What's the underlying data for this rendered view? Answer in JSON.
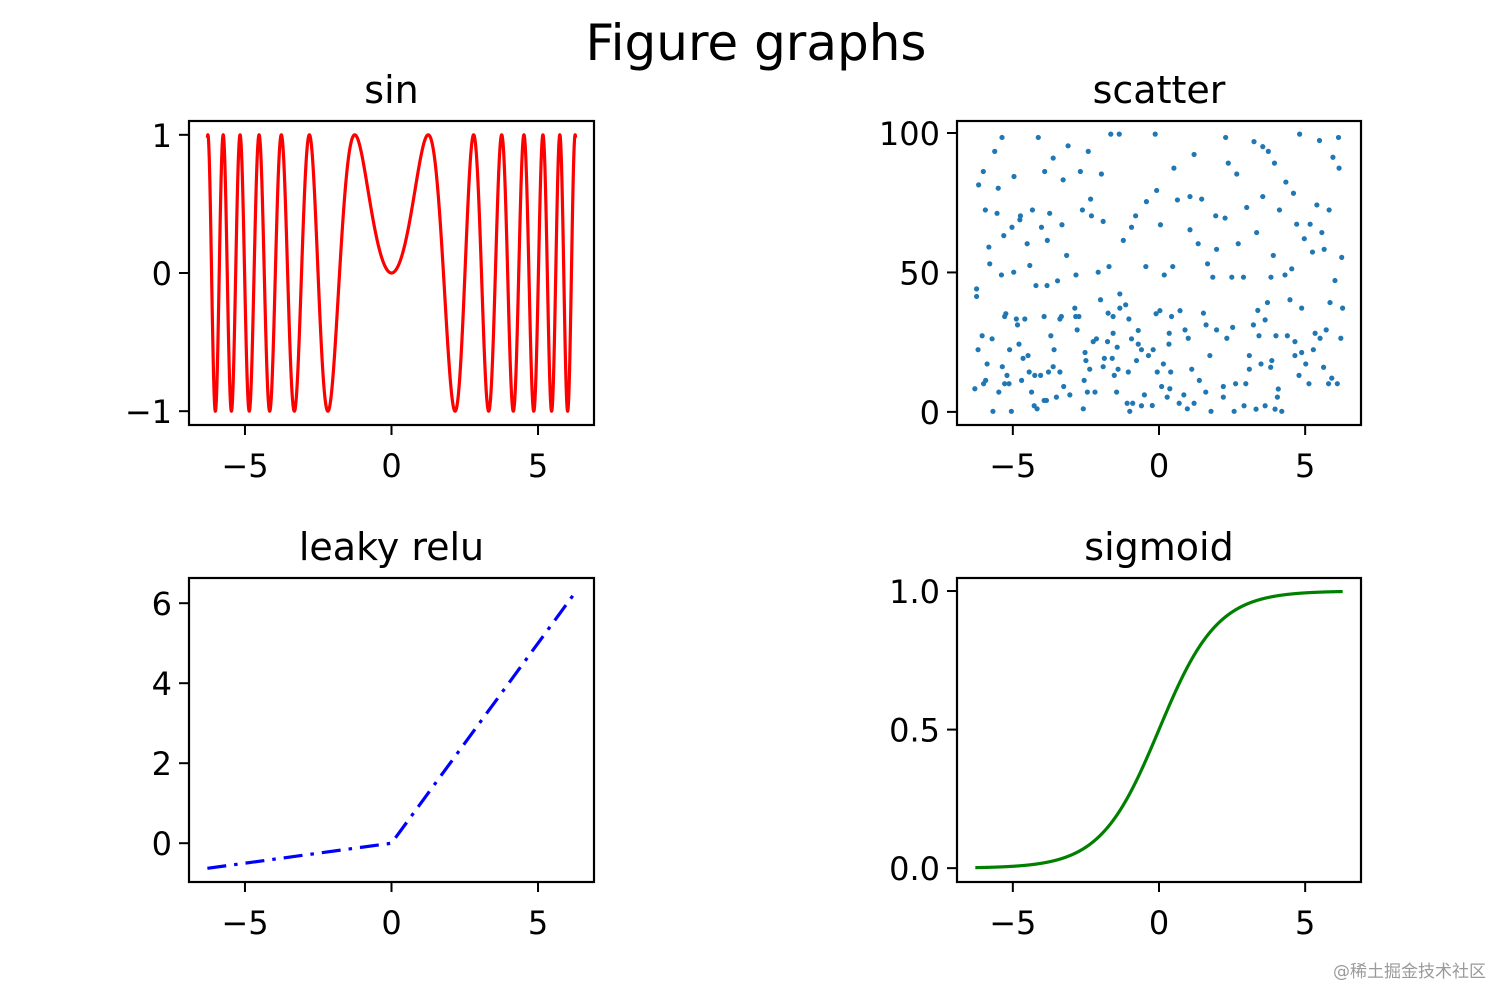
{
  "figure_title": "Figure graphs",
  "watermark": "@稀土掘金技术社区",
  "chart_data": [
    {
      "type": "line",
      "title": "sin",
      "color": "#ff0000",
      "linestyle": "solid",
      "x_range": [
        -6.283,
        6.283
      ],
      "xlim": [
        -6.91,
        6.91
      ],
      "ylim": [
        -1.1,
        1.1
      ],
      "xticks": [
        -5,
        0,
        5
      ],
      "xtick_labels": [
        "−5",
        "0",
        "5"
      ],
      "yticks": [
        -1,
        0,
        1
      ],
      "ytick_labels": [
        "−1",
        "0",
        "1"
      ]
    },
    {
      "type": "scatter",
      "title": "scatter",
      "color": "#1f77b4",
      "xlim": [
        -6.91,
        6.91
      ],
      "ylim": [
        -4.7,
        104.3
      ],
      "xticks": [
        -5,
        0,
        5
      ],
      "xtick_labels": [
        "−5",
        "0",
        "5"
      ],
      "yticks": [
        0,
        50,
        100
      ],
      "ytick_labels": [
        "0",
        "50",
        "100"
      ],
      "points": [
        [
          -5.37,
          98.4
        ],
        [
          -4.13,
          98.4
        ],
        [
          -1.65,
          99.6
        ],
        [
          -1.36,
          99.6
        ],
        [
          -0.13,
          99.6
        ],
        [
          2.28,
          98.4
        ],
        [
          4.81,
          99.6
        ],
        [
          6.14,
          98.4
        ],
        [
          -5.62,
          93.4
        ],
        [
          -6.01,
          86.2
        ],
        [
          -6.17,
          81.4
        ],
        [
          -5.5,
          80.2
        ],
        [
          -4.96,
          84.4
        ],
        [
          -3.91,
          86.2
        ],
        [
          -3.11,
          95.4
        ],
        [
          -2.42,
          93.4
        ],
        [
          -3.62,
          91.0
        ],
        [
          -3.28,
          83.2
        ],
        [
          -2.69,
          86.2
        ],
        [
          -1.97,
          85.3
        ],
        [
          -5.94,
          72.4
        ],
        [
          -5.54,
          71.2
        ],
        [
          -4.33,
          72.4
        ],
        [
          -3.74,
          71.2
        ],
        [
          -4.74,
          70.3
        ],
        [
          -5.03,
          66.2
        ],
        [
          -5.31,
          63.2
        ],
        [
          -5.82,
          59.1
        ],
        [
          -5.79,
          53.1
        ],
        [
          -5.39,
          49.1
        ],
        [
          -4.97,
          50.1
        ],
        [
          -4.51,
          60.3
        ],
        [
          -4.42,
          52.5
        ],
        [
          -4.02,
          66.2
        ],
        [
          -3.82,
          61.5
        ],
        [
          -3.32,
          67.1
        ],
        [
          -3.16,
          56.1
        ],
        [
          -2.84,
          49.1
        ],
        [
          -4.21,
          45.3
        ],
        [
          -3.83,
          45.3
        ],
        [
          -3.47,
          47.0
        ],
        [
          -6.24,
          44.1
        ],
        [
          -6.24,
          41.4
        ],
        [
          -2.62,
          72.4
        ],
        [
          -2.31,
          70.3
        ],
        [
          -1.91,
          68.3
        ],
        [
          -2.34,
          76.3
        ],
        [
          -2.08,
          50.1
        ],
        [
          -1.71,
          52.1
        ],
        [
          -1.22,
          61.5
        ],
        [
          -0.94,
          66.2
        ],
        [
          -0.8,
          70.3
        ],
        [
          -0.43,
          75.4
        ],
        [
          -0.08,
          79.4
        ],
        [
          0.51,
          87.4
        ],
        [
          1.2,
          92.3
        ],
        [
          0.63,
          76.0
        ],
        [
          1.06,
          77.2
        ],
        [
          1.46,
          76.3
        ],
        [
          -0.45,
          52.1
        ],
        [
          0.18,
          49.1
        ],
        [
          0.47,
          52.1
        ],
        [
          0.05,
          67.1
        ],
        [
          1.06,
          65.3
        ],
        [
          1.34,
          60.3
        ],
        [
          1.94,
          70.3
        ],
        [
          2.26,
          69.5
        ],
        [
          1.97,
          58.3
        ],
        [
          1.66,
          53.1
        ],
        [
          1.84,
          48.3
        ],
        [
          2.49,
          48.3
        ],
        [
          2.89,
          48.3
        ],
        [
          2.37,
          89.2
        ],
        [
          2.66,
          85.3
        ],
        [
          3.25,
          96.9
        ],
        [
          3.55,
          95.1
        ],
        [
          3.74,
          93.4
        ],
        [
          3.95,
          89.2
        ],
        [
          4.34,
          82.4
        ],
        [
          4.6,
          78.4
        ],
        [
          3.0,
          73.3
        ],
        [
          3.55,
          77.2
        ],
        [
          4.12,
          72.4
        ],
        [
          4.71,
          67.3
        ],
        [
          5.17,
          67.3
        ],
        [
          5.57,
          64.3
        ],
        [
          5.82,
          72.4
        ],
        [
          5.4,
          74.2
        ],
        [
          5.95,
          91.3
        ],
        [
          5.49,
          97.3
        ],
        [
          6.16,
          87.4
        ],
        [
          5.65,
          58.3
        ],
        [
          6.25,
          55.4
        ],
        [
          6.02,
          47.1
        ],
        [
          5.25,
          57.3
        ],
        [
          4.97,
          62.1
        ],
        [
          4.54,
          51.3
        ],
        [
          4.31,
          49.1
        ],
        [
          3.83,
          48.3
        ],
        [
          3.91,
          56.1
        ],
        [
          3.34,
          64.3
        ],
        [
          2.71,
          60.3
        ],
        [
          5.85,
          39.2
        ],
        [
          6.28,
          37.2
        ],
        [
          4.88,
          37.2
        ],
        [
          4.48,
          40.2
        ],
        [
          3.71,
          39.2
        ],
        [
          3.38,
          36.4
        ],
        [
          3.63,
          33.0
        ],
        [
          3.23,
          31.2
        ],
        [
          3.42,
          27.3
        ],
        [
          4.0,
          27.3
        ],
        [
          4.39,
          27.3
        ],
        [
          4.65,
          25.2
        ],
        [
          5.34,
          28.2
        ],
        [
          5.51,
          26.4
        ],
        [
          6.22,
          26.4
        ],
        [
          5.72,
          29.4
        ],
        [
          5.28,
          22.3
        ],
        [
          4.65,
          20.2
        ],
        [
          4.88,
          21.3
        ],
        [
          5.02,
          17.2
        ],
        [
          5.63,
          16.0
        ],
        [
          5.91,
          12.1
        ],
        [
          5.8,
          10.1
        ],
        [
          6.1,
          10.1
        ],
        [
          5.13,
          10.1
        ],
        [
          4.79,
          13.1
        ],
        [
          4.08,
          8.2
        ],
        [
          4.05,
          5.3
        ],
        [
          4.2,
          0.2
        ],
        [
          3.97,
          1.0
        ],
        [
          3.63,
          2.2
        ],
        [
          3.32,
          1.0
        ],
        [
          2.91,
          2.2
        ],
        [
          2.57,
          0.2
        ],
        [
          2.62,
          10.1
        ],
        [
          2.97,
          10.1
        ],
        [
          2.2,
          9.1
        ],
        [
          2.2,
          5.3
        ],
        [
          1.78,
          0.2
        ],
        [
          1.6,
          7.1
        ],
        [
          1.38,
          11.3
        ],
        [
          1.12,
          15.3
        ],
        [
          1.74,
          20.2
        ],
        [
          3.09,
          15.3
        ],
        [
          3.09,
          20.2
        ],
        [
          3.49,
          17.2
        ],
        [
          3.82,
          16.0
        ],
        [
          3.86,
          18.4
        ],
        [
          2.32,
          26.4
        ],
        [
          2.52,
          30.3
        ],
        [
          1.97,
          29.4
        ],
        [
          1.61,
          31.2
        ],
        [
          1.52,
          35.4
        ],
        [
          1.0,
          26.4
        ],
        [
          0.89,
          29.4
        ],
        [
          0.72,
          36.3
        ],
        [
          0.43,
          34.2
        ],
        [
          0.35,
          28.2
        ],
        [
          0.34,
          24.3
        ],
        [
          0.03,
          36.3
        ],
        [
          -0.1,
          35.2
        ],
        [
          0.15,
          17.2
        ],
        [
          -0.06,
          14.3
        ],
        [
          0.4,
          14.3
        ],
        [
          0.09,
          9.1
        ],
        [
          0.37,
          8.3
        ],
        [
          0.28,
          5.3
        ],
        [
          0.85,
          6.1
        ],
        [
          0.69,
          3.1
        ],
        [
          0.97,
          1.1
        ],
        [
          1.2,
          3.1
        ],
        [
          -0.23,
          2.3
        ],
        [
          -0.5,
          6.1
        ],
        [
          -0.6,
          2.2
        ],
        [
          -0.9,
          3.1
        ],
        [
          -1.09,
          3.1
        ],
        [
          -1.0,
          0.2
        ],
        [
          -1.45,
          7.1
        ],
        [
          -1.05,
          14.3
        ],
        [
          -1.4,
          15.3
        ],
        [
          -1.53,
          13.1
        ],
        [
          -0.77,
          18.4
        ],
        [
          -0.36,
          20.2
        ],
        [
          -0.2,
          22.3
        ],
        [
          -0.6,
          22.3
        ],
        [
          -0.71,
          24.3
        ],
        [
          -0.94,
          26.2
        ],
        [
          -0.71,
          29.2
        ],
        [
          -1.03,
          33.3
        ],
        [
          -1.57,
          34.2
        ],
        [
          -1.74,
          35.4
        ],
        [
          -1.34,
          37.2
        ],
        [
          -1.14,
          38.4
        ],
        [
          -1.34,
          42.3
        ],
        [
          -2.0,
          40.2
        ],
        [
          -1.57,
          28.2
        ],
        [
          -1.76,
          25.2
        ],
        [
          -1.43,
          23.2
        ],
        [
          -2.14,
          26.2
        ],
        [
          -2.25,
          25.2
        ],
        [
          -1.87,
          19.2
        ],
        [
          -1.6,
          19.2
        ],
        [
          -1.91,
          16.2
        ],
        [
          -2.37,
          15.3
        ],
        [
          -2.5,
          18.4
        ],
        [
          -2.53,
          21.3
        ],
        [
          -2.56,
          11.3
        ],
        [
          -2.45,
          7.1
        ],
        [
          -2.19,
          7.1
        ],
        [
          -2.59,
          1.1
        ],
        [
          -3.05,
          6.1
        ],
        [
          -3.26,
          9.1
        ],
        [
          -3.51,
          5.3
        ],
        [
          -3.93,
          4.1
        ],
        [
          -3.85,
          4.1
        ],
        [
          -3.39,
          14.3
        ],
        [
          -3.62,
          16.2
        ],
        [
          -3.78,
          14.3
        ],
        [
          -4.05,
          13.1
        ],
        [
          -4.25,
          13.1
        ],
        [
          -4.44,
          14.3
        ],
        [
          -4.36,
          7.1
        ],
        [
          -4.27,
          2.2
        ],
        [
          -4.17,
          1.1
        ],
        [
          -4.7,
          11.3
        ],
        [
          -5.05,
          0.2
        ],
        [
          -5.68,
          0.2
        ],
        [
          -5.48,
          7.1
        ],
        [
          -5.28,
          10.1
        ],
        [
          -5.13,
          10.1
        ],
        [
          -5.2,
          13.1
        ],
        [
          -5.36,
          16.2
        ],
        [
          -5.93,
          11.3
        ],
        [
          -6.0,
          10.1
        ],
        [
          -6.3,
          8.3
        ],
        [
          -5.88,
          17.2
        ],
        [
          -6.19,
          22.3
        ],
        [
          -6.05,
          27.3
        ],
        [
          -5.71,
          26.2
        ],
        [
          -5.11,
          22.3
        ],
        [
          -4.79,
          24.3
        ],
        [
          -4.65,
          19.2
        ],
        [
          -4.48,
          20.2
        ],
        [
          -5.24,
          35.2
        ],
        [
          -5.28,
          34.2
        ],
        [
          -4.88,
          33.3
        ],
        [
          -4.84,
          31.2
        ],
        [
          -4.59,
          33.3
        ],
        [
          -3.93,
          34.2
        ],
        [
          -3.39,
          33.3
        ],
        [
          -3.34,
          34.2
        ],
        [
          -2.88,
          37.2
        ],
        [
          -2.85,
          34.2
        ],
        [
          -2.74,
          34.2
        ],
        [
          -2.8,
          29.4
        ],
        [
          -3.7,
          27.3
        ],
        [
          -3.59,
          22.3
        ],
        [
          -4.76,
          68.9
        ]
      ]
    },
    {
      "type": "line",
      "title": "leaky relu",
      "color": "#0000ff",
      "linestyle": "dashdot",
      "x": [
        -6.283,
        0,
        6.283
      ],
      "y": [
        -0.628,
        0,
        6.283
      ],
      "xlim": [
        -6.91,
        6.91
      ],
      "ylim": [
        -0.97,
        6.63
      ],
      "xticks": [
        -5,
        0,
        5
      ],
      "xtick_labels": [
        "−5",
        "0",
        "5"
      ],
      "yticks": [
        0,
        2,
        4,
        6
      ],
      "ytick_labels": [
        "0",
        "2",
        "4",
        "6"
      ]
    },
    {
      "type": "line",
      "title": "sigmoid",
      "color": "#008000",
      "linestyle": "solid",
      "x_range": [
        -6.283,
        6.283
      ],
      "xlim": [
        -6.91,
        6.91
      ],
      "ylim": [
        -0.05,
        1.047
      ],
      "xticks": [
        -5,
        0,
        5
      ],
      "xtick_labels": [
        "−5",
        "0",
        "5"
      ],
      "yticks": [
        0,
        0.5,
        1
      ],
      "ytick_labels": [
        "0.0",
        "0.5",
        "1.0"
      ]
    }
  ]
}
